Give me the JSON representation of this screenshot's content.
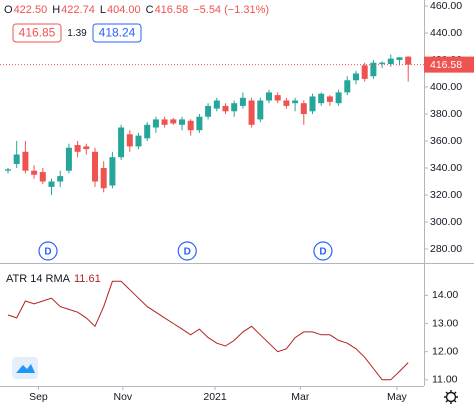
{
  "chart_data": {
    "type": "candlestick",
    "header": [
      {
        "label": "O",
        "value": "422.50"
      },
      {
        "label": "H",
        "value": "422.74"
      },
      {
        "label": "L",
        "value": "404.00"
      },
      {
        "label": "C",
        "value": "416.58"
      }
    ],
    "change": "−5.54 (−1.31%)",
    "bid": "416.85",
    "spread": "1.39",
    "ask": "418.24",
    "up_color": "#26a69a",
    "down_color": "#ef5350",
    "open": [
      338,
      343,
      352,
      338,
      337,
      326,
      330,
      338,
      357,
      356,
      352,
      340,
      327,
      348,
      365,
      356,
      362,
      370,
      376,
      376,
      372,
      375,
      368,
      378,
      384,
      386,
      382,
      386,
      390,
      376,
      390,
      394,
      390,
      388,
      388,
      382,
      388,
      393,
      388,
      396,
      405,
      416,
      408,
      417,
      417,
      420,
      422.5
    ],
    "high": [
      340,
      360,
      360,
      342,
      340,
      332,
      338,
      358,
      360,
      358,
      355,
      345,
      352,
      372,
      368,
      366,
      374,
      378,
      378,
      377,
      378,
      376,
      380,
      388,
      392,
      388,
      390,
      396,
      392,
      392,
      398,
      396,
      392,
      392,
      390,
      395,
      396,
      394,
      398,
      408,
      412,
      418,
      420,
      419,
      424,
      422,
      422.74
    ],
    "low": [
      336,
      340,
      336,
      332,
      328,
      320,
      326,
      336,
      348,
      350,
      326,
      322,
      325,
      346,
      352,
      354,
      360,
      366,
      370,
      372,
      368,
      364,
      366,
      376,
      382,
      380,
      378,
      384,
      370,
      374,
      388,
      388,
      384,
      382,
      372,
      380,
      386,
      386,
      386,
      394,
      402,
      404,
      406,
      414,
      415,
      416,
      404
    ],
    "close": [
      339,
      350,
      338,
      335,
      330,
      330,
      334,
      355,
      352,
      354,
      330,
      325,
      348,
      370,
      356,
      364,
      372,
      376,
      372,
      373,
      376,
      368,
      378,
      386,
      390,
      382,
      388,
      392,
      372,
      390,
      396,
      390,
      386,
      390,
      380,
      393,
      395,
      389,
      396,
      405,
      410,
      406,
      418,
      418,
      421,
      422,
      416.58
    ],
    "ylim": [
      280,
      460
    ],
    "yticks": [
      {
        "value": 280,
        "label": "280.00"
      },
      {
        "value": 300,
        "label": "300.00"
      },
      {
        "value": 320,
        "label": "320.00"
      },
      {
        "value": 340,
        "label": "340.00"
      },
      {
        "value": 360,
        "label": "360.00"
      },
      {
        "value": 380,
        "label": "380.00"
      },
      {
        "value": 400,
        "label": "400.00"
      },
      {
        "value": 420,
        "label": "420.00"
      },
      {
        "value": 440,
        "label": "440.00"
      },
      {
        "value": 460,
        "label": "460.00"
      }
    ],
    "xticks": [
      {
        "value": 3.5,
        "label": "Sep"
      },
      {
        "value": 13.2,
        "label": "Nov"
      },
      {
        "value": 23.8,
        "label": "2021"
      },
      {
        "value": 33.6,
        "label": "Mar"
      },
      {
        "value": 44.7,
        "label": "May"
      }
    ],
    "events": [
      {
        "x": 4.6,
        "label": "D"
      },
      {
        "x": 20.6,
        "label": "D"
      },
      {
        "x": 36.2,
        "label": "D"
      }
    ],
    "indicator": {
      "name": "ATR 14 RMA",
      "color": "#b22222",
      "values": [
        13.3,
        13.2,
        13.8,
        13.7,
        13.8,
        13.9,
        13.6,
        13.5,
        13.4,
        13.2,
        12.9,
        13.6,
        14.5,
        14.5,
        14.2,
        13.9,
        13.6,
        13.4,
        13.2,
        13.0,
        12.8,
        12.6,
        12.8,
        12.5,
        12.3,
        12.2,
        12.4,
        12.7,
        12.9,
        12.6,
        12.3,
        12.0,
        12.1,
        12.5,
        12.7,
        12.7,
        12.6,
        12.6,
        12.4,
        12.3,
        12.1,
        11.8,
        11.4,
        11.0,
        11.0,
        11.3,
        11.61
      ],
      "ylim": [
        10.78,
        14.9
      ],
      "yticks": [
        {
          "value": 11,
          "label": "11.00"
        },
        {
          "value": 12,
          "label": "12.00"
        },
        {
          "value": 13,
          "label": "13.00"
        },
        {
          "value": 14,
          "label": "14.00"
        }
      ]
    }
  }
}
